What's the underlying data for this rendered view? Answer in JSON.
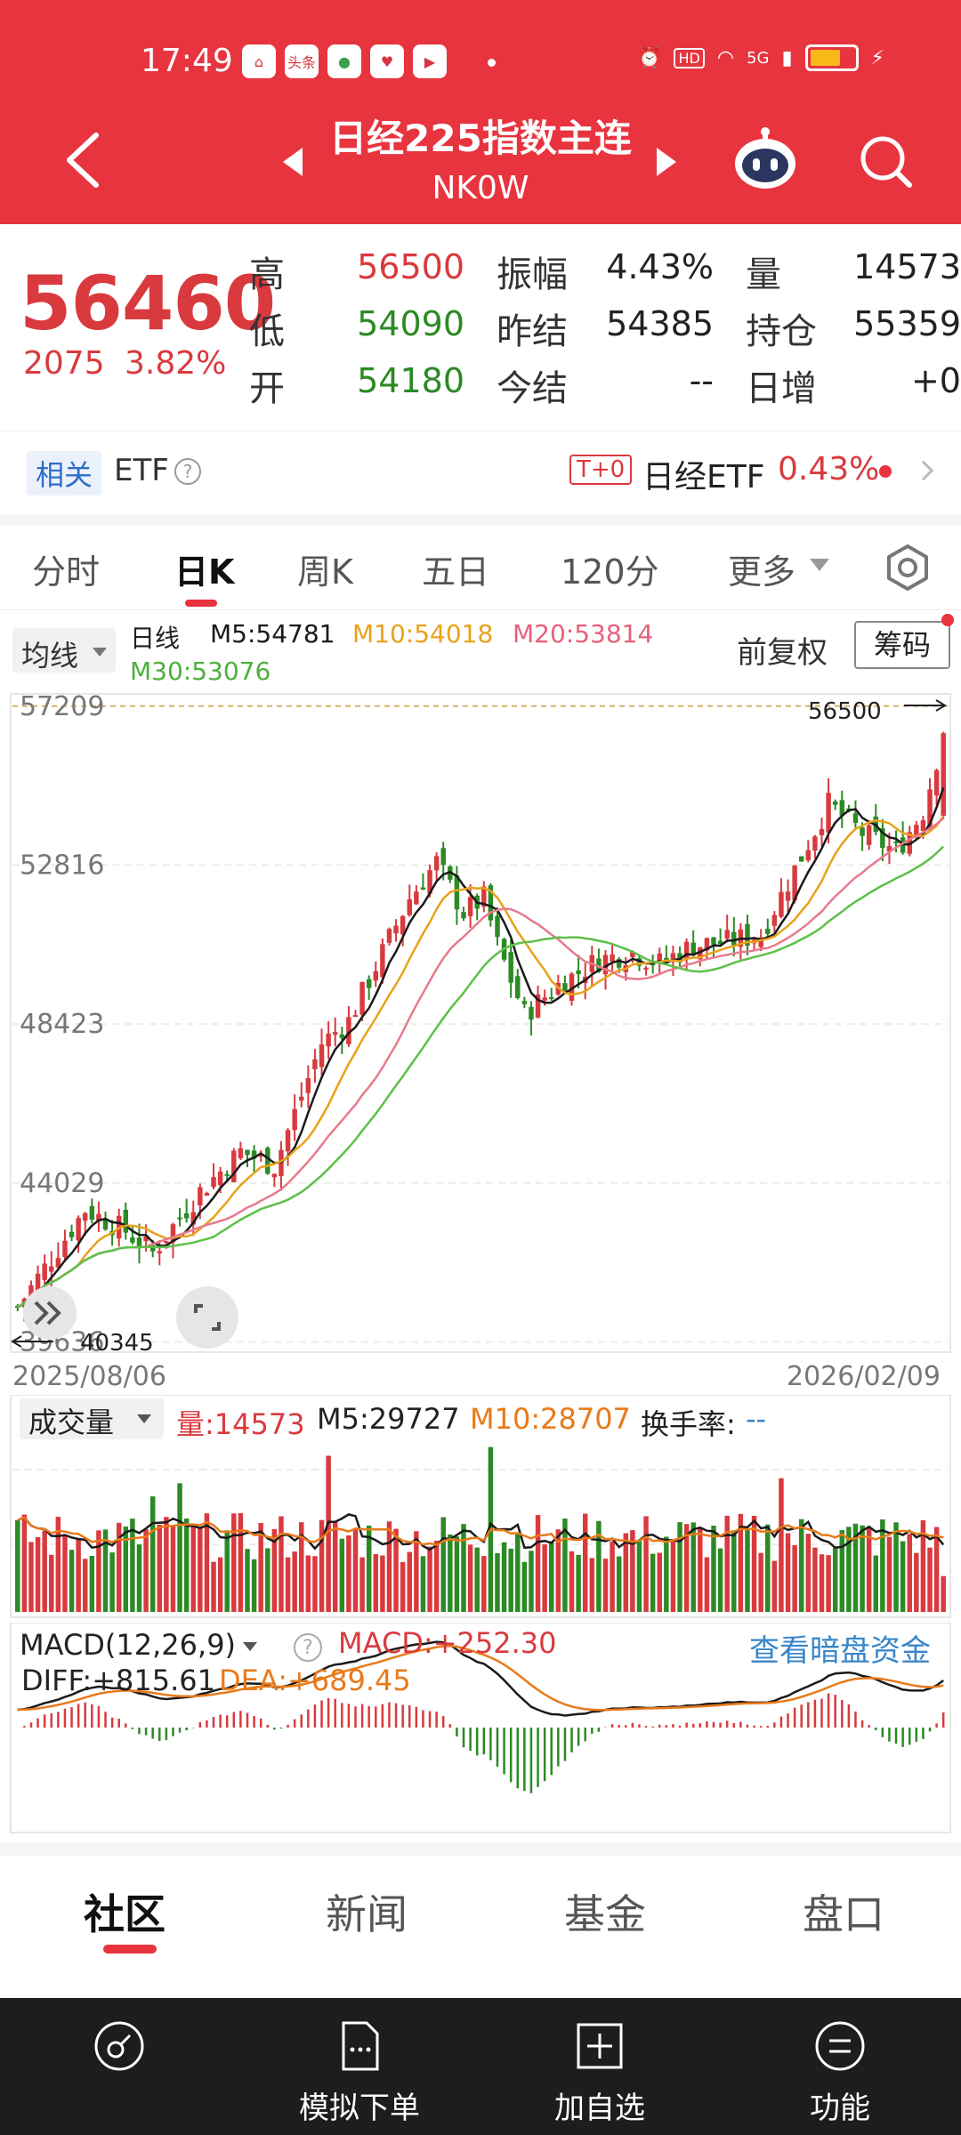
{
  "status_bar": {
    "time": "17:49",
    "apps": [
      "头条"
    ],
    "network": "5G",
    "icons": [
      "alarm-icon",
      "hd-icon",
      "wifi-icon",
      "signal-icon",
      "battery-icon",
      "charging-icon"
    ]
  },
  "header": {
    "title": "日经225指数主连",
    "code": "NK0W"
  },
  "quote": {
    "price": "56460",
    "change": "2075",
    "change_pct": "3.82%",
    "fields": [
      {
        "label": "高",
        "value": "56500",
        "color": "#d93a3e"
      },
      {
        "label": "低",
        "value": "54090",
        "color": "#2c8a25"
      },
      {
        "label": "开",
        "value": "54180",
        "color": "#2c8a25"
      },
      {
        "label": "振幅",
        "value": "4.43%",
        "color": "#222222"
      },
      {
        "label": "昨结",
        "value": "54385",
        "color": "#222222"
      },
      {
        "label": "今结",
        "value": "--",
        "color": "#222222"
      },
      {
        "label": "量",
        "value": "14573",
        "color": "#222222"
      },
      {
        "label": "持仓",
        "value": "55359",
        "color": "#222222"
      },
      {
        "label": "日增",
        "value": "+0",
        "color": "#222222"
      }
    ]
  },
  "etf_bar": {
    "tag": "相关",
    "label": "ETF",
    "help": "?",
    "t0": "T+0",
    "name": "日经ETF",
    "pct": "0.43%"
  },
  "tabs": [
    "分时",
    "日K",
    "周K",
    "五日",
    "120分",
    "更多"
  ],
  "active_tab": "日K",
  "ma": {
    "selector": "均线",
    "type": "日线",
    "m5": "M5:54781",
    "m10": "M10:54018",
    "m20": "M20:53814",
    "m30": "M30:53076",
    "adjust": "前复权",
    "chips": "筹码"
  },
  "colors": {
    "accent": "#e8343f",
    "up": "#d93a3e",
    "down": "#2c8a25",
    "m5": "#1a1a1a",
    "m10": "#e8a21a",
    "m20": "#e87a8e",
    "m30": "#5cc04a",
    "link": "#3a86c8"
  },
  "kline": {
    "y_ticks": [
      "57209",
      "52816",
      "48423",
      "44029",
      "39636"
    ],
    "high_label": "56500",
    "low_label": "40345",
    "date_start": "2025/08/06",
    "date_end": "2026/02/09"
  },
  "volume": {
    "selector": "成交量",
    "vol": "量:14573",
    "m5": "M5:29727",
    "m10": "M10:28707",
    "turnover_label": "换手率:",
    "turnover_value": "--"
  },
  "macd": {
    "selector": "MACD(12,26,9)",
    "help": "?",
    "macd": "MACD:+252.30",
    "diff": "DIFF:+815.61",
    "dea": "DEA:+689.45",
    "link": "查看暗盘资金"
  },
  "sub_tabs": [
    "社区",
    "新闻",
    "基金",
    "盘口"
  ],
  "toolbar": [
    {
      "label": "",
      "icon": "compass-icon"
    },
    {
      "label": "模拟下单",
      "icon": "document-icon"
    },
    {
      "label": "加自选",
      "icon": "add-square-icon"
    },
    {
      "label": "功能",
      "icon": "menu-circle-icon"
    }
  ]
}
